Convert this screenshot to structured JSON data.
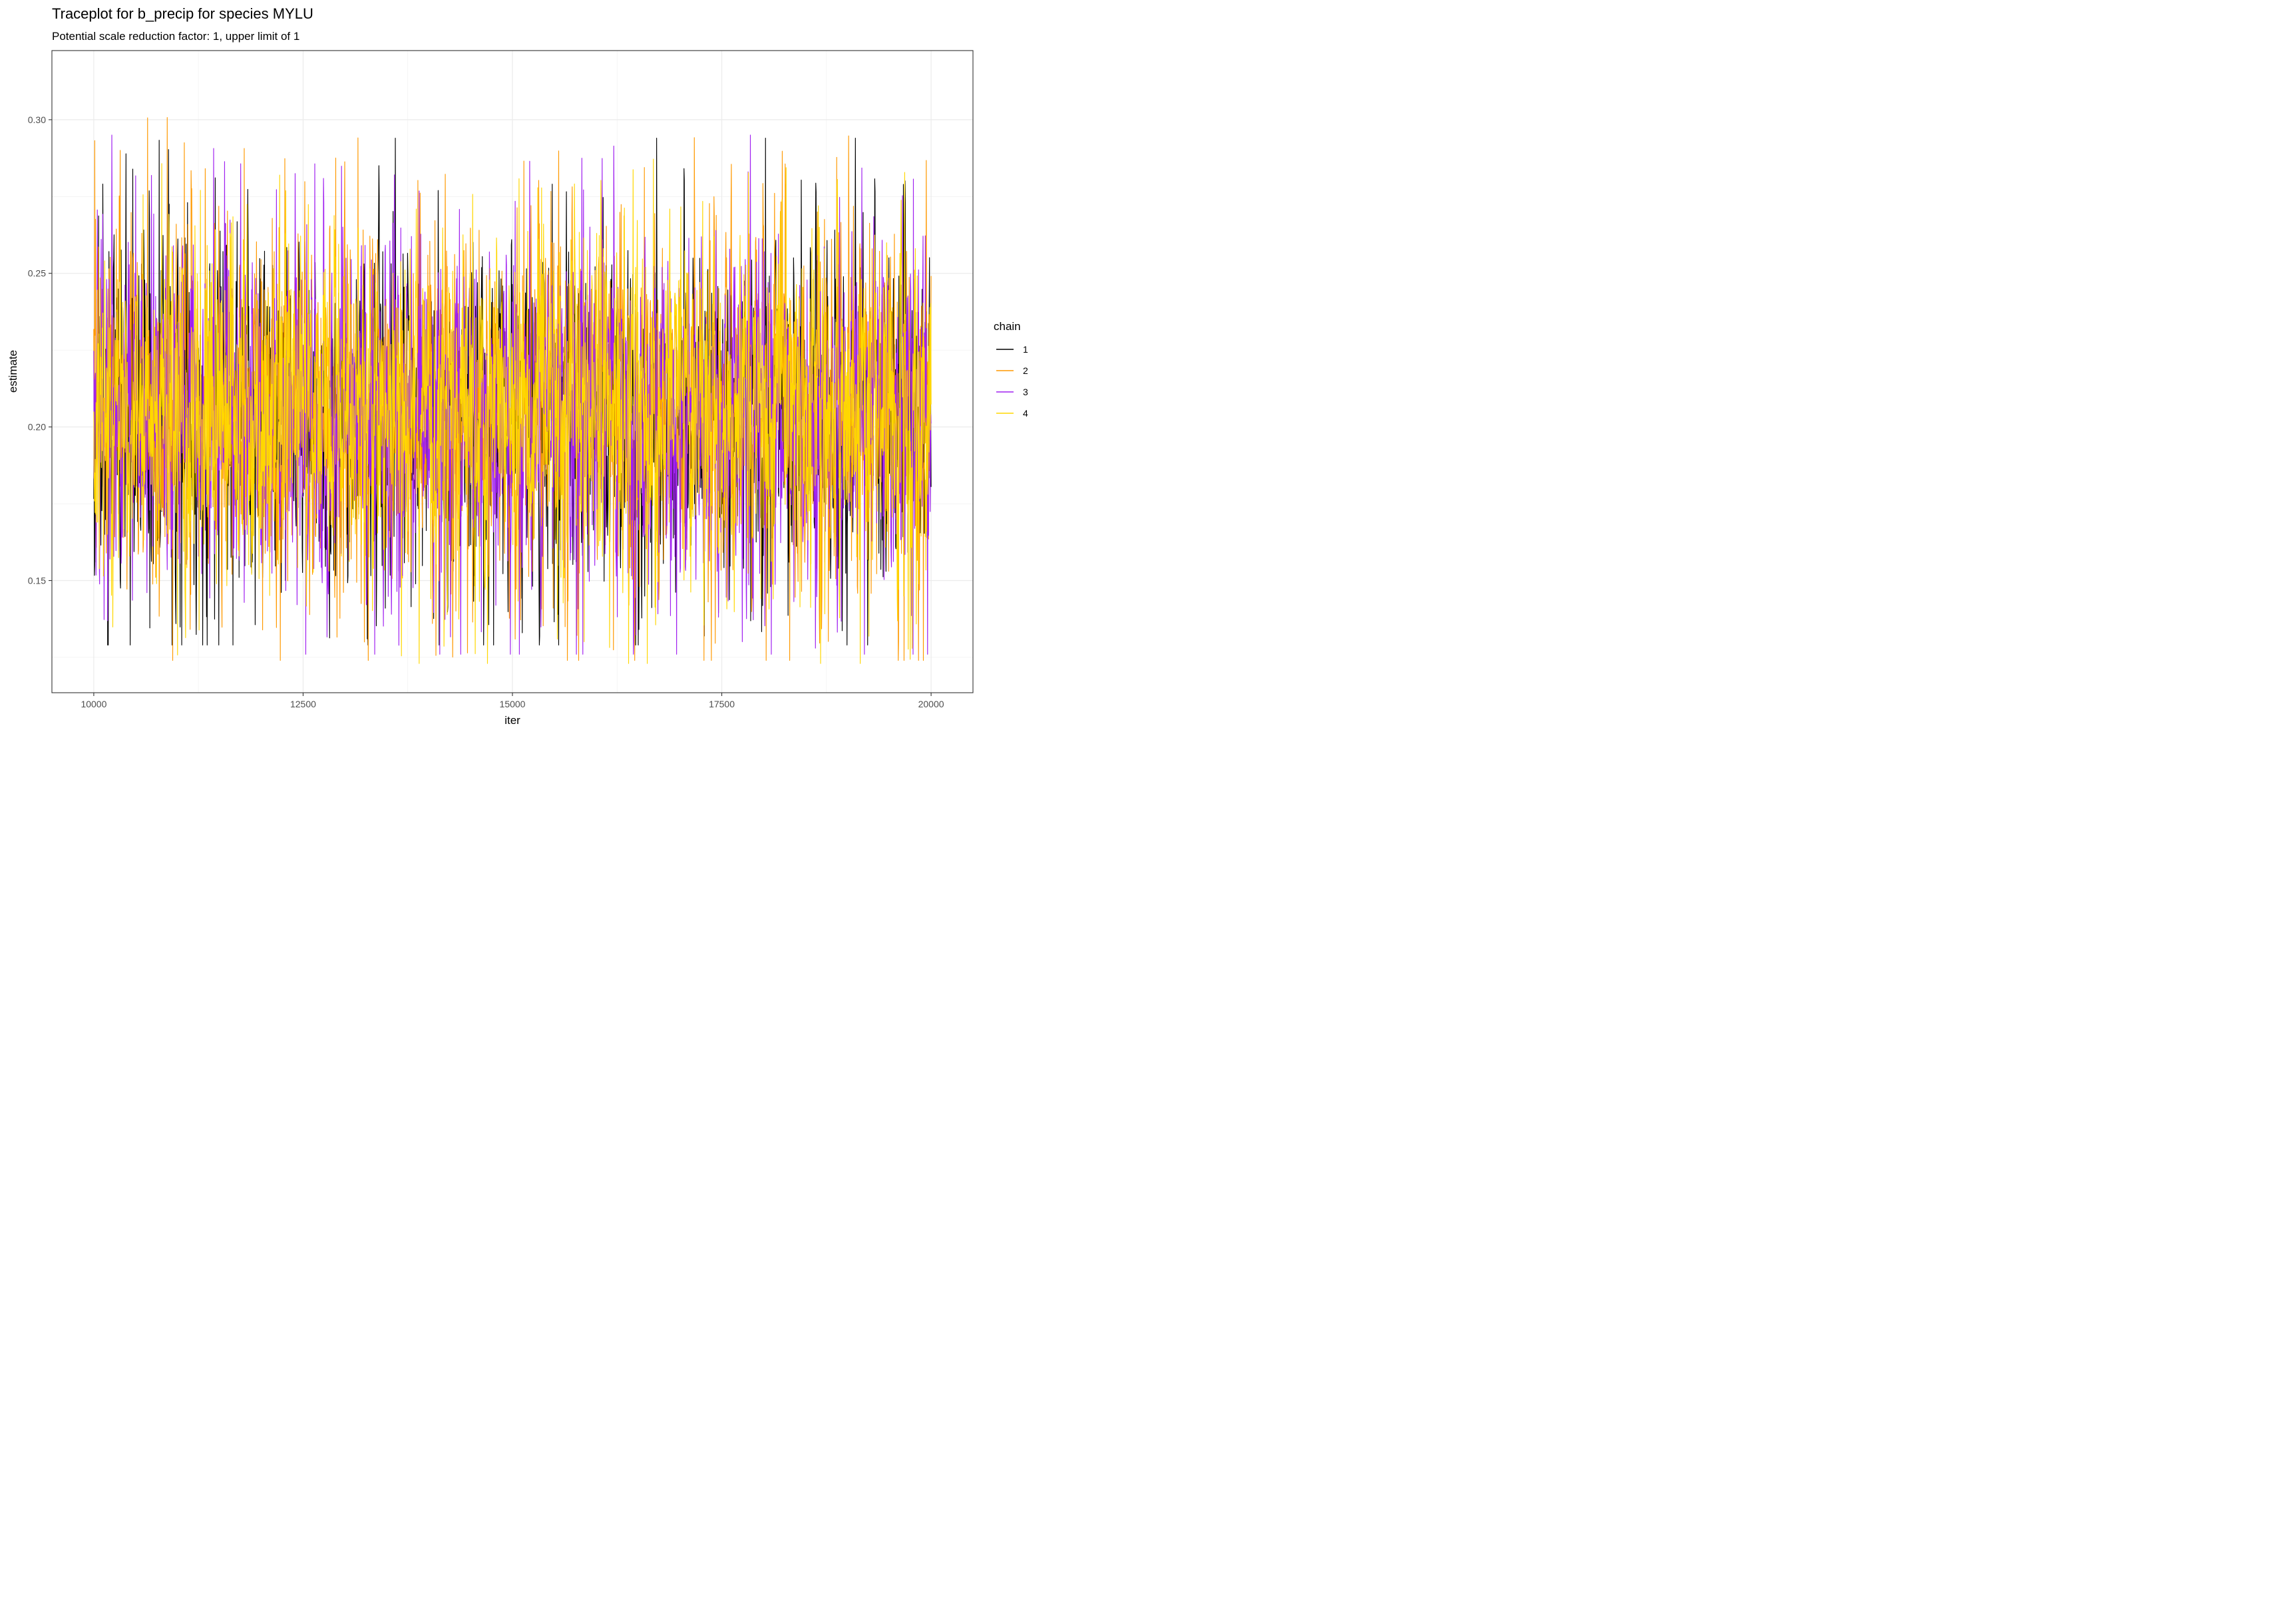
{
  "chart_data": {
    "type": "line",
    "title": "Traceplot for b_precip for species MYLU",
    "subtitle": "Potential scale reduction factor: 1, upper limit of 1",
    "xlabel": "iter",
    "ylabel": "estimate",
    "xlim": [
      9500,
      20500
    ],
    "ylim": [
      0.1135,
      0.3225
    ],
    "x_ticks": [
      10000,
      12500,
      15000,
      17500,
      20000
    ],
    "x_tick_labels": [
      "10000",
      "12500",
      "15000",
      "17500",
      "20000"
    ],
    "y_ticks": [
      0.15,
      0.2,
      0.25,
      0.3
    ],
    "y_tick_labels": [
      "0.15",
      "0.20",
      "0.25",
      "0.30"
    ],
    "grid": true,
    "legend_title": "chain",
    "legend_position": "right",
    "x_range": [
      10000,
      20000
    ],
    "series": [
      {
        "name": "1",
        "color": "#000000",
        "mean": 0.205,
        "sd": 0.025,
        "min": 0.129,
        "max": 0.294
      },
      {
        "name": "2",
        "color": "#FF9900",
        "mean": 0.206,
        "sd": 0.025,
        "min": 0.124,
        "max": 0.313
      },
      {
        "name": "3",
        "color": "#A020F0",
        "mean": 0.205,
        "sd": 0.025,
        "min": 0.126,
        "max": 0.295
      },
      {
        "name": "4",
        "color": "#FFD700",
        "mean": 0.206,
        "sd": 0.024,
        "min": 0.123,
        "max": 0.295
      }
    ]
  }
}
